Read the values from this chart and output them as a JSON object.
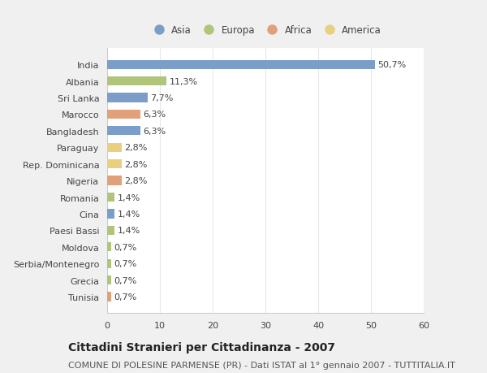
{
  "countries": [
    "India",
    "Albania",
    "Sri Lanka",
    "Marocco",
    "Bangladesh",
    "Paraguay",
    "Rep. Dominicana",
    "Nigeria",
    "Romania",
    "Cina",
    "Paesi Bassi",
    "Moldova",
    "Serbia/Montenegro",
    "Grecia",
    "Tunisia"
  ],
  "values": [
    50.7,
    11.3,
    7.7,
    6.3,
    6.3,
    2.8,
    2.8,
    2.8,
    1.4,
    1.4,
    1.4,
    0.7,
    0.7,
    0.7,
    0.7
  ],
  "labels": [
    "50,7%",
    "11,3%",
    "7,7%",
    "6,3%",
    "6,3%",
    "2,8%",
    "2,8%",
    "2,8%",
    "1,4%",
    "1,4%",
    "1,4%",
    "0,7%",
    "0,7%",
    "0,7%",
    "0,7%"
  ],
  "continents": [
    "Asia",
    "Europa",
    "Asia",
    "Africa",
    "Asia",
    "America",
    "America",
    "Africa",
    "Europa",
    "Asia",
    "Europa",
    "Europa",
    "Europa",
    "Europa",
    "Africa"
  ],
  "continent_colors": {
    "Asia": "#7b9ec9",
    "Europa": "#b0c47a",
    "Africa": "#e0a07a",
    "America": "#e8d080"
  },
  "legend_order": [
    "Asia",
    "Europa",
    "Africa",
    "America"
  ],
  "xlim": [
    0,
    60
  ],
  "xticks": [
    0,
    10,
    20,
    30,
    40,
    50,
    60
  ],
  "title": "Cittadini Stranieri per Cittadinanza - 2007",
  "subtitle": "COMUNE DI POLESINE PARMENSE (PR) - Dati ISTAT al 1° gennaio 2007 - TUTTITALIA.IT",
  "background_color": "#f0f0f0",
  "plot_bg_color": "#ffffff",
  "bar_height": 0.55,
  "label_fontsize": 8,
  "title_fontsize": 10,
  "subtitle_fontsize": 8,
  "tick_fontsize": 8,
  "ytick_fontsize": 8,
  "legend_fontsize": 8.5,
  "grid_color": "#e8e8e8",
  "text_color": "#444444"
}
